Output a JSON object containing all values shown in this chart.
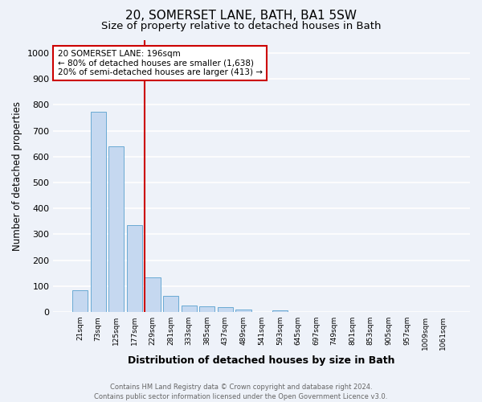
{
  "title1": "20, SOMERSET LANE, BATH, BA1 5SW",
  "title2": "Size of property relative to detached houses in Bath",
  "xlabel": "Distribution of detached houses by size in Bath",
  "ylabel": "Number of detached properties",
  "bar_labels": [
    "21sqm",
    "73sqm",
    "125sqm",
    "177sqm",
    "229sqm",
    "281sqm",
    "333sqm",
    "385sqm",
    "437sqm",
    "489sqm",
    "541sqm",
    "593sqm",
    "645sqm",
    "697sqm",
    "749sqm",
    "801sqm",
    "853sqm",
    "905sqm",
    "957sqm",
    "1009sqm",
    "1061sqm"
  ],
  "bar_values": [
    83,
    775,
    641,
    335,
    135,
    61,
    26,
    22,
    18,
    10,
    0,
    7,
    0,
    0,
    0,
    0,
    0,
    0,
    0,
    0,
    0
  ],
  "bar_color": "#c5d8f0",
  "bar_edge_color": "#6aaad4",
  "vline_color": "#cc0000",
  "vline_x": 3.55,
  "annotation_text": "20 SOMERSET LANE: 196sqm\n← 80% of detached houses are smaller (1,638)\n20% of semi-detached houses are larger (413) →",
  "annotation_box_color": "#ffffff",
  "annotation_box_edge": "#cc0000",
  "ylim": [
    0,
    1050
  ],
  "yticks": [
    0,
    100,
    200,
    300,
    400,
    500,
    600,
    700,
    800,
    900,
    1000
  ],
  "footer": "Contains HM Land Registry data © Crown copyright and database right 2024.\nContains public sector information licensed under the Open Government Licence v3.0.",
  "background_color": "#eef2f9",
  "grid_color": "#ffffff",
  "title1_fontsize": 11,
  "title2_fontsize": 9.5
}
